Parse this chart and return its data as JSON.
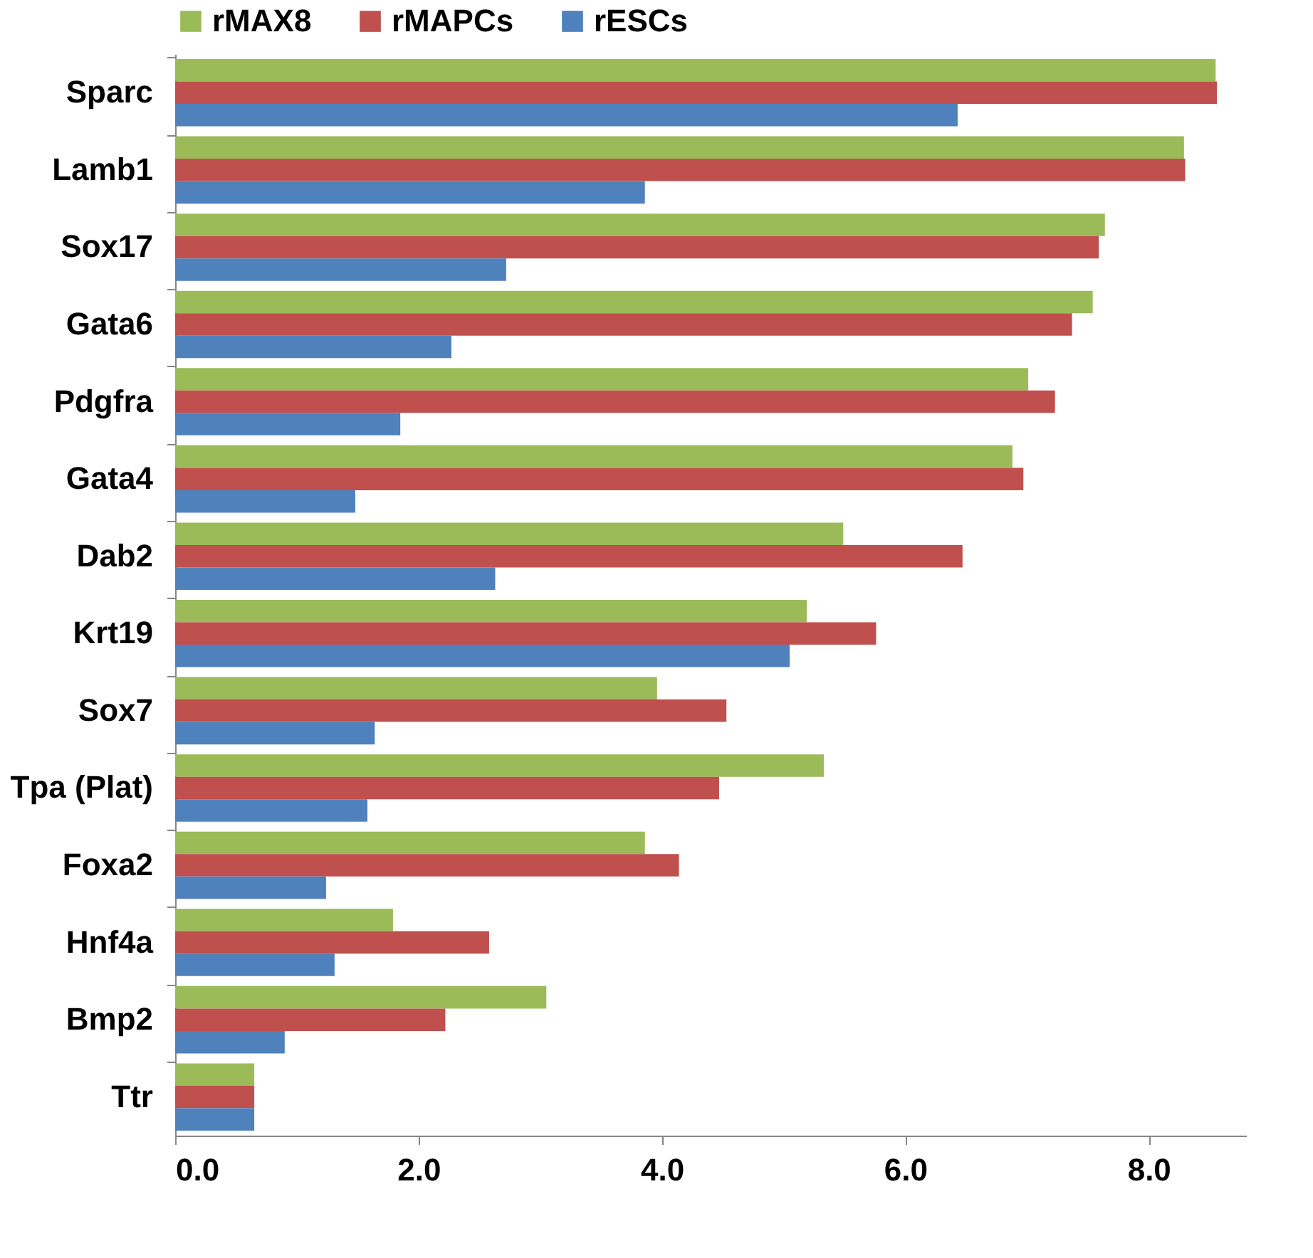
{
  "chart_data": {
    "type": "bar",
    "orientation": "horizontal",
    "legend": "top",
    "grid": false,
    "categories": [
      "Sparc",
      "Lamb1",
      "Sox17",
      "Gata6",
      "Pdgfra",
      "Gata4",
      "Dab2",
      "Krt19",
      "Sox7",
      "Tpa (Plat)",
      "Foxa2",
      "Hnf4a",
      "Bmp2",
      "Ttr"
    ],
    "series": [
      {
        "name": "rMAX8",
        "color": "#9bbb59",
        "values": [
          8.55,
          8.29,
          7.64,
          7.54,
          7.01,
          6.88,
          5.49,
          5.19,
          3.96,
          5.33,
          3.86,
          1.79,
          3.05,
          0.65
        ]
      },
      {
        "name": "rMAPCs",
        "color": "#c0504d",
        "values": [
          8.56,
          8.3,
          7.59,
          7.37,
          7.23,
          6.97,
          6.47,
          5.76,
          4.53,
          4.47,
          4.14,
          2.58,
          2.22,
          0.65
        ]
      },
      {
        "name": "rESCs",
        "color": "#4f81bd",
        "values": [
          6.43,
          3.86,
          2.72,
          2.27,
          1.85,
          1.48,
          2.63,
          5.05,
          1.64,
          1.58,
          1.24,
          1.31,
          0.9,
          0.65
        ]
      }
    ],
    "xlim": [
      0,
      8.8
    ],
    "xticks": [
      {
        "value": 0,
        "label": "0.0"
      },
      {
        "value": 2,
        "label": "2.0"
      },
      {
        "value": 4,
        "label": "4.0"
      },
      {
        "value": 6,
        "label": "6.0"
      },
      {
        "value": 8,
        "label": "8.0"
      }
    ]
  }
}
